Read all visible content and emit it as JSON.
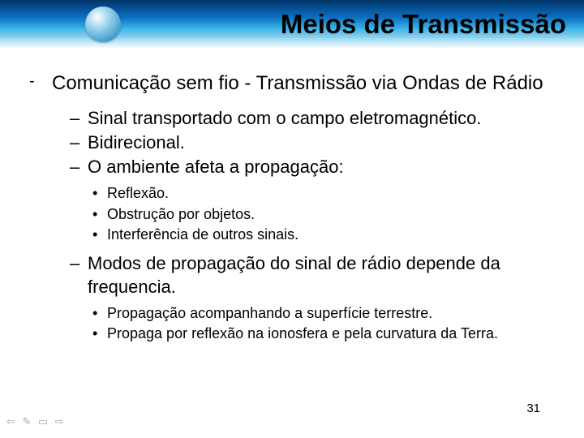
{
  "header": {
    "title": "Meios de Transmissão"
  },
  "main": {
    "bullet_text": "Comunicação sem fio - Transmissão via Ondas de Rádio",
    "subs": [
      "Sinal transportado com o campo eletromagnético.",
      "Bidirecional.",
      "O ambiente afeta a propagação:"
    ],
    "subsubs_a": [
      "Reflexão.",
      "Obstrução por objetos.",
      "Interferência de outros sinais."
    ],
    "sub_after": "Modos de propagação do sinal de rádio depende da frequencia.",
    "subsubs_b": [
      "Propagação acompanhando a superfície terrestre.",
      "Propaga por reflexão na ionosfera e pela curvatura da Terra."
    ]
  },
  "page_number": "31",
  "nav": {
    "a": "⇦",
    "b": "✎",
    "c": "▭",
    "d": "⇨"
  }
}
